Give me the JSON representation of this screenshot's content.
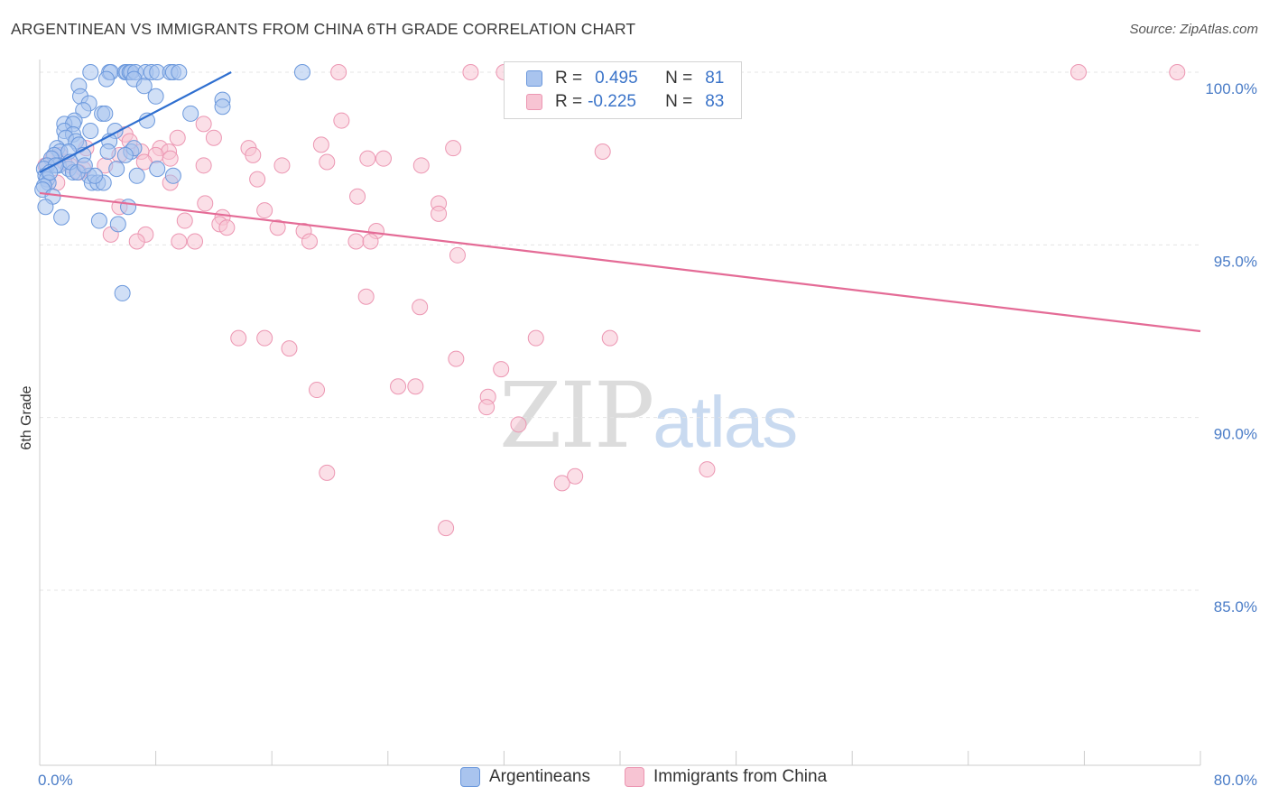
{
  "header": {
    "title": "ARGENTINEAN VS IMMIGRANTS FROM CHINA 6TH GRADE CORRELATION CHART",
    "source": "Source: ZipAtlas.com"
  },
  "watermark": {
    "zip": "ZIP",
    "atlas": "atlas"
  },
  "legend": {
    "rows": [
      {
        "r_label": "R =",
        "r_value": "0.495",
        "n_label": "N =",
        "n_value": "81"
      },
      {
        "r_label": "R =",
        "r_value": "-0.225",
        "n_label": "N =",
        "n_value": "83"
      }
    ]
  },
  "bottom_legend": {
    "items": [
      {
        "label": "Argentineans"
      },
      {
        "label": "Immigrants from China"
      }
    ]
  },
  "colors": {
    "blue_fill": "#a9c4ee",
    "blue_stroke": "#6b98dc",
    "blue_line": "#2f6fd0",
    "pink_fill": "#f7c4d3",
    "pink_stroke": "#ec96b2",
    "pink_line": "#e46b96",
    "tick_text": "#4a7cc7"
  },
  "chart_data": {
    "type": "scatter",
    "title": "ARGENTINEAN VS IMMIGRANTS FROM CHINA 6TH GRADE CORRELATION CHART",
    "xlabel": "",
    "ylabel": "6th Grade",
    "xlim": [
      0,
      80
    ],
    "ylim": [
      80.0,
      100.7
    ],
    "x_tick_labels": [
      "0.0%",
      "80.0%"
    ],
    "y_ticks": [
      85.0,
      90.0,
      95.0,
      100.0
    ],
    "y_tick_labels": [
      "85.0%",
      "90.0%",
      "95.0%",
      "100.0%"
    ],
    "grid": true,
    "series": [
      {
        "name": "Argentineans",
        "r": 0.495,
        "n": 81,
        "trend": {
          "x": [
            0.0,
            13.2
          ],
          "y": [
            97.1,
            100.0
          ]
        },
        "points": [
          [
            3.5,
            100
          ],
          [
            4.8,
            100
          ],
          [
            4.9,
            100
          ],
          [
            5.9,
            100
          ],
          [
            6.0,
            100
          ],
          [
            6.2,
            100
          ],
          [
            6.3,
            100
          ],
          [
            6.6,
            100
          ],
          [
            7.3,
            100
          ],
          [
            7.7,
            100
          ],
          [
            8.1,
            100
          ],
          [
            9.0,
            100
          ],
          [
            9.2,
            100
          ],
          [
            9.6,
            100
          ],
          [
            18.1,
            100
          ],
          [
            4.6,
            99.8
          ],
          [
            6.5,
            99.8
          ],
          [
            2.7,
            99.6
          ],
          [
            7.2,
            99.6
          ],
          [
            2.8,
            99.3
          ],
          [
            8.0,
            99.3
          ],
          [
            12.6,
            99.2
          ],
          [
            3.4,
            99.1
          ],
          [
            12.6,
            99.0
          ],
          [
            3.0,
            98.9
          ],
          [
            4.3,
            98.8
          ],
          [
            4.5,
            98.8
          ],
          [
            10.4,
            98.8
          ],
          [
            2.4,
            98.6
          ],
          [
            1.7,
            98.5
          ],
          [
            2.3,
            98.5
          ],
          [
            7.4,
            98.6
          ],
          [
            1.7,
            98.3
          ],
          [
            5.2,
            98.3
          ],
          [
            2.3,
            98.2
          ],
          [
            3.5,
            98.3
          ],
          [
            1.8,
            98.1
          ],
          [
            2.5,
            98.0
          ],
          [
            2.7,
            97.9
          ],
          [
            4.8,
            98.0
          ],
          [
            1.2,
            97.8
          ],
          [
            1.4,
            97.7
          ],
          [
            1.0,
            97.6
          ],
          [
            2.0,
            97.7
          ],
          [
            3.0,
            97.6
          ],
          [
            4.7,
            97.7
          ],
          [
            6.3,
            97.7
          ],
          [
            6.5,
            97.8
          ],
          [
            0.8,
            97.5
          ],
          [
            1.3,
            97.3
          ],
          [
            0.5,
            97.3
          ],
          [
            0.3,
            97.2
          ],
          [
            0.4,
            97.0
          ],
          [
            2.0,
            97.2
          ],
          [
            5.3,
            97.2
          ],
          [
            2.3,
            97.1
          ],
          [
            3.4,
            97.0
          ],
          [
            6.7,
            97.0
          ],
          [
            8.1,
            97.2
          ],
          [
            0.5,
            96.9
          ],
          [
            0.6,
            96.8
          ],
          [
            3.6,
            96.8
          ],
          [
            4.0,
            96.8
          ],
          [
            4.4,
            96.8
          ],
          [
            0.3,
            96.7
          ],
          [
            0.2,
            96.6
          ],
          [
            0.9,
            96.4
          ],
          [
            0.4,
            96.1
          ],
          [
            6.1,
            96.1
          ],
          [
            1.5,
            95.8
          ],
          [
            4.1,
            95.7
          ],
          [
            5.4,
            95.6
          ],
          [
            5.7,
            93.6
          ],
          [
            2.1,
            97.4
          ],
          [
            3.8,
            97.0
          ],
          [
            2.6,
            97.1
          ],
          [
            5.9,
            97.6
          ],
          [
            3.1,
            97.3
          ],
          [
            9.2,
            97.0
          ],
          [
            1.1,
            97.3
          ],
          [
            0.7,
            97.1
          ]
        ]
      },
      {
        "name": "Immigrants from China",
        "r": -0.225,
        "n": 83,
        "trend": {
          "x": [
            0.0,
            80.0
          ],
          "y": [
            96.5,
            92.5
          ]
        },
        "points": [
          [
            20.6,
            100
          ],
          [
            29.7,
            100
          ],
          [
            32.0,
            100
          ],
          [
            71.6,
            100
          ],
          [
            78.4,
            100
          ],
          [
            20.8,
            98.6
          ],
          [
            11.3,
            98.5
          ],
          [
            5.9,
            98.2
          ],
          [
            6.2,
            98.0
          ],
          [
            9.5,
            98.1
          ],
          [
            12.0,
            98.1
          ],
          [
            19.4,
            97.9
          ],
          [
            28.5,
            97.8
          ],
          [
            14.4,
            97.8
          ],
          [
            8.3,
            97.8
          ],
          [
            8.9,
            97.7
          ],
          [
            8.0,
            97.6
          ],
          [
            5.5,
            97.6
          ],
          [
            14.7,
            97.6
          ],
          [
            7.0,
            97.7
          ],
          [
            9.0,
            97.5
          ],
          [
            19.8,
            97.4
          ],
          [
            26.3,
            97.3
          ],
          [
            22.6,
            97.5
          ],
          [
            23.7,
            97.5
          ],
          [
            11.3,
            97.3
          ],
          [
            7.2,
            97.4
          ],
          [
            16.7,
            97.3
          ],
          [
            4.5,
            97.3
          ],
          [
            38.8,
            97.7
          ],
          [
            3.0,
            97.2
          ],
          [
            15.0,
            96.9
          ],
          [
            9.0,
            96.8
          ],
          [
            21.9,
            96.4
          ],
          [
            11.4,
            96.2
          ],
          [
            27.5,
            96.2
          ],
          [
            5.5,
            96.1
          ],
          [
            15.5,
            96.0
          ],
          [
            27.5,
            95.9
          ],
          [
            12.6,
            95.8
          ],
          [
            10.0,
            95.7
          ],
          [
            12.4,
            95.6
          ],
          [
            12.9,
            95.5
          ],
          [
            16.4,
            95.5
          ],
          [
            18.2,
            95.4
          ],
          [
            23.2,
            95.4
          ],
          [
            7.3,
            95.3
          ],
          [
            4.9,
            95.3
          ],
          [
            6.7,
            95.1
          ],
          [
            10.7,
            95.1
          ],
          [
            9.6,
            95.1
          ],
          [
            18.6,
            95.1
          ],
          [
            21.8,
            95.1
          ],
          [
            22.8,
            95.1
          ],
          [
            28.8,
            94.7
          ],
          [
            22.5,
            93.5
          ],
          [
            26.2,
            93.2
          ],
          [
            13.7,
            92.3
          ],
          [
            15.5,
            92.3
          ],
          [
            34.2,
            92.3
          ],
          [
            39.3,
            92.3
          ],
          [
            17.2,
            92.0
          ],
          [
            28.7,
            91.7
          ],
          [
            31.8,
            91.4
          ],
          [
            24.7,
            90.9
          ],
          [
            25.9,
            90.9
          ],
          [
            19.1,
            90.8
          ],
          [
            30.9,
            90.6
          ],
          [
            30.8,
            90.3
          ],
          [
            33.0,
            89.8
          ],
          [
            19.8,
            88.4
          ],
          [
            46.0,
            88.5
          ],
          [
            36.0,
            88.1
          ],
          [
            36.9,
            88.3
          ],
          [
            28.0,
            86.8
          ],
          [
            1.4,
            97.6
          ],
          [
            2.1,
            97.3
          ],
          [
            0.9,
            97.5
          ],
          [
            1.2,
            96.8
          ],
          [
            0.4,
            97.3
          ],
          [
            3.2,
            97.8
          ],
          [
            2.7,
            97.1
          ],
          [
            1.7,
            97.4
          ]
        ]
      }
    ]
  }
}
